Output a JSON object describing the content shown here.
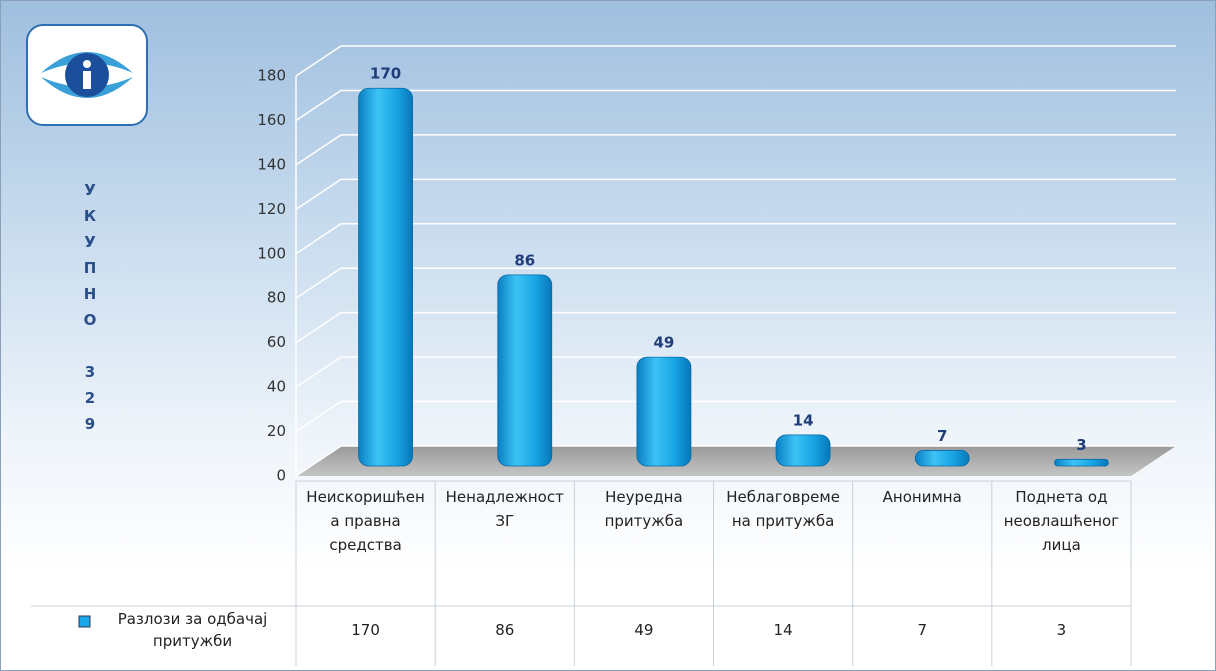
{
  "chart_data": {
    "type": "bar",
    "ylabel": "УКУПНО 329",
    "categories": [
      "Неискоришћена правна средства",
      "Ненадлежност ЗГ",
      "Неуредна притужба",
      "Неблаговремена притужба",
      "Анонимна",
      "Поднета од неовлашћеног лица"
    ],
    "series": [
      {
        "name": "Разлози за одбачај притужби",
        "color": "#1aa7e8",
        "values": [
          170,
          86,
          49,
          14,
          7,
          3
        ]
      }
    ],
    "ylim": [
      0,
      180
    ],
    "yticks": [
      0,
      20,
      40,
      60,
      80,
      100,
      120,
      140,
      160,
      180
    ],
    "grid": true
  }
}
